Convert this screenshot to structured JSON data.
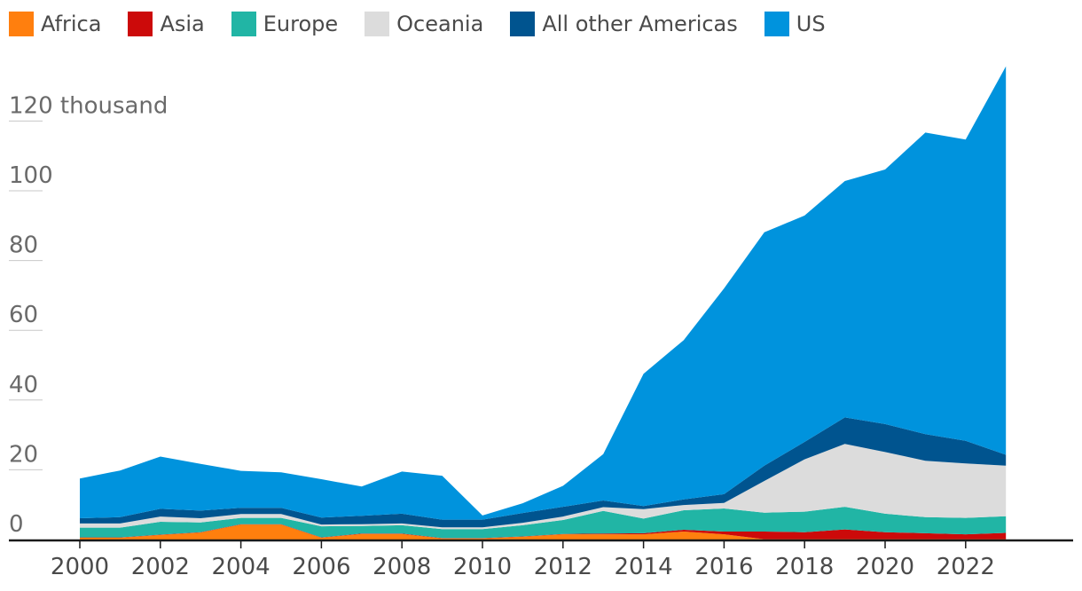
{
  "chart_data": {
    "type": "area",
    "stacked": true,
    "title": "",
    "xlabel": "",
    "ylabel": "",
    "ylim": [
      0,
      136
    ],
    "x": [
      2000,
      2001,
      2002,
      2003,
      2004,
      2005,
      2006,
      2007,
      2008,
      2009,
      2010,
      2011,
      2012,
      2013,
      2014,
      2015,
      2016,
      2017,
      2018,
      2019,
      2020,
      2021,
      2022,
      2023
    ],
    "series": [
      {
        "name": "Africa",
        "color": "#ff7f0e",
        "values": [
          0.5,
          0.5,
          1.3,
          2.0,
          4.3,
          4.3,
          0.5,
          1.6,
          1.6,
          0.3,
          0.3,
          0.8,
          1.5,
          1.5,
          1.5,
          2.3,
          1.5,
          0.1,
          0.1,
          0.1,
          0.1,
          0.1,
          0.1,
          0.1
        ]
      },
      {
        "name": "Asia",
        "color": "#cc0a0a",
        "values": [
          0.1,
          0.1,
          0.1,
          0.1,
          0.1,
          0.1,
          0.1,
          0.1,
          0.1,
          0.1,
          0.1,
          0.1,
          0.1,
          0.2,
          0.3,
          0.5,
          0.8,
          2.2,
          2.0,
          2.8,
          2.0,
          1.7,
          1.4,
          1.8
        ]
      },
      {
        "name": "Europe",
        "color": "#21b5a5",
        "values": [
          2.8,
          2.8,
          3.7,
          2.8,
          1.8,
          1.8,
          3.2,
          2.2,
          2.4,
          2.6,
          2.6,
          3.2,
          4.0,
          6.5,
          4.2,
          5.6,
          6.6,
          5.4,
          5.9,
          6.5,
          5.3,
          4.6,
          4.7,
          4.8
        ]
      },
      {
        "name": "Oceania",
        "color": "#dcdcdc",
        "values": [
          1.2,
          1.2,
          1.5,
          1.2,
          1.1,
          1.1,
          0.5,
          0.5,
          0.5,
          0.5,
          0.5,
          0.7,
          1.0,
          1.1,
          2.7,
          1.5,
          1.6,
          9.1,
          15.0,
          18.0,
          17.7,
          16.2,
          15.6,
          14.5
        ]
      },
      {
        "name": "All other Americas",
        "color": "#00548f",
        "values": [
          1.5,
          1.8,
          2.2,
          2.2,
          1.8,
          1.8,
          2.0,
          2.4,
          2.8,
          2.2,
          2.2,
          2.8,
          2.8,
          1.9,
          0.9,
          1.6,
          2.5,
          4.4,
          5.0,
          7.6,
          8.0,
          7.6,
          6.5,
          3.1
        ]
      },
      {
        "name": "US",
        "color": "#0093dd",
        "values": [
          11.4,
          13.4,
          15.0,
          13.4,
          10.6,
          10.2,
          11.0,
          8.4,
          12.1,
          12.6,
          1.2,
          2.8,
          6.0,
          13.3,
          37.9,
          45.7,
          59.0,
          66.9,
          64.9,
          67.8,
          73.0,
          86.5,
          86.4,
          111.4
        ]
      }
    ],
    "y_ticks": [
      {
        "value": 0,
        "label": "0"
      },
      {
        "value": 20,
        "label": "20"
      },
      {
        "value": 40,
        "label": "40"
      },
      {
        "value": 60,
        "label": "60"
      },
      {
        "value": 80,
        "label": "80"
      },
      {
        "value": 100,
        "label": "100"
      },
      {
        "value": 120,
        "label": "120 thousand"
      }
    ],
    "x_ticks": [
      2000,
      2002,
      2004,
      2006,
      2008,
      2010,
      2012,
      2014,
      2016,
      2018,
      2020,
      2022
    ],
    "legend_position": "top-left",
    "colors": {
      "axis": "#1a1a1a",
      "grid": "#c8c8c8",
      "tick_text": "#6a6a6a"
    }
  }
}
